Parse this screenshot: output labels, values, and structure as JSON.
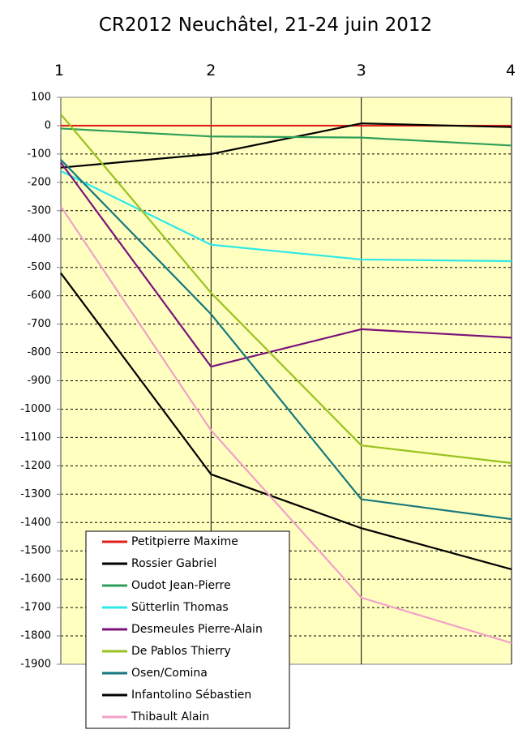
{
  "chart_data": {
    "type": "line",
    "title": "CR2012 Neuchâtel, 21-24 juin 2012",
    "x": [
      1,
      2,
      3,
      4
    ],
    "xlim": [
      1,
      4
    ],
    "ylim": [
      -1900,
      100
    ],
    "y_ticks": [
      100,
      0,
      -100,
      -200,
      -300,
      -400,
      -500,
      -600,
      -700,
      -800,
      -900,
      -1000,
      -1100,
      -1200,
      -1300,
      -1400,
      -1500,
      -1600,
      -1700,
      -1800,
      -1900
    ],
    "x_axis_position": "top",
    "grid": "horizontal dashed, vertical solid",
    "plot_background": "#ffffc0",
    "legend_position": "bottom-left",
    "series": [
      {
        "name": "Petitpierre Maxime",
        "color": "#e0201b",
        "values": [
          0,
          0,
          0,
          0
        ]
      },
      {
        "name": "Rossier Gabriel",
        "color": "#000000",
        "values": [
          -148,
          -100,
          8,
          -5
        ]
      },
      {
        "name": "Oudot Jean-Pierre",
        "color": "#2e9e5a",
        "values": [
          -10,
          -38,
          -42,
          -70
        ]
      },
      {
        "name": "Sütterlin Thomas",
        "color": "#2ee8e8",
        "values": [
          -160,
          -420,
          -472,
          -478
        ]
      },
      {
        "name": "Desmeules Pierre-Alain",
        "color": "#7b137b",
        "values": [
          -130,
          -850,
          -718,
          -748
        ]
      },
      {
        "name": "De Pablos Thierry",
        "color": "#99c21e",
        "values": [
          40,
          -590,
          -1128,
          -1190
        ]
      },
      {
        "name": "Osen/Comina",
        "color": "#16787e",
        "values": [
          -120,
          -665,
          -1318,
          -1388
        ]
      },
      {
        "name": "Infantolino Sébastien",
        "color": "#000000",
        "values": [
          -520,
          -1230,
          -1420,
          -1565
        ]
      },
      {
        "name": "Thibault Alain",
        "color": "#f2a0c8",
        "values": [
          -285,
          -1075,
          -1665,
          -1825
        ]
      }
    ]
  }
}
